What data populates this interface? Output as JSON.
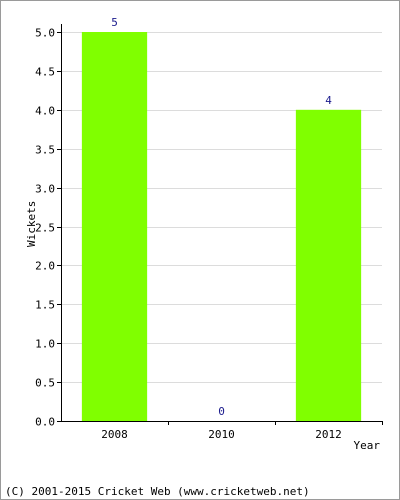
{
  "chart_data": {
    "type": "bar",
    "categories": [
      "2008",
      "2010",
      "2012"
    ],
    "values": [
      5,
      0,
      4
    ],
    "data_labels": [
      "5",
      "0",
      "4"
    ],
    "xlabel": "Year",
    "ylabel": "Wickets",
    "ylim": [
      0,
      5
    ],
    "yticks": [
      "0.0",
      "0.5",
      "1.0",
      "1.5",
      "2.0",
      "2.5",
      "3.0",
      "3.5",
      "4.0",
      "4.5",
      "5.0"
    ],
    "ytick_values": [
      0,
      0.5,
      1,
      1.5,
      2,
      2.5,
      3,
      3.5,
      4,
      4.5,
      5
    ],
    "grid": true,
    "bar_color": "#80ff00",
    "label_color": "#1a1a8c"
  },
  "footer": "(C) 2001-2015 Cricket Web (www.cricketweb.net)"
}
